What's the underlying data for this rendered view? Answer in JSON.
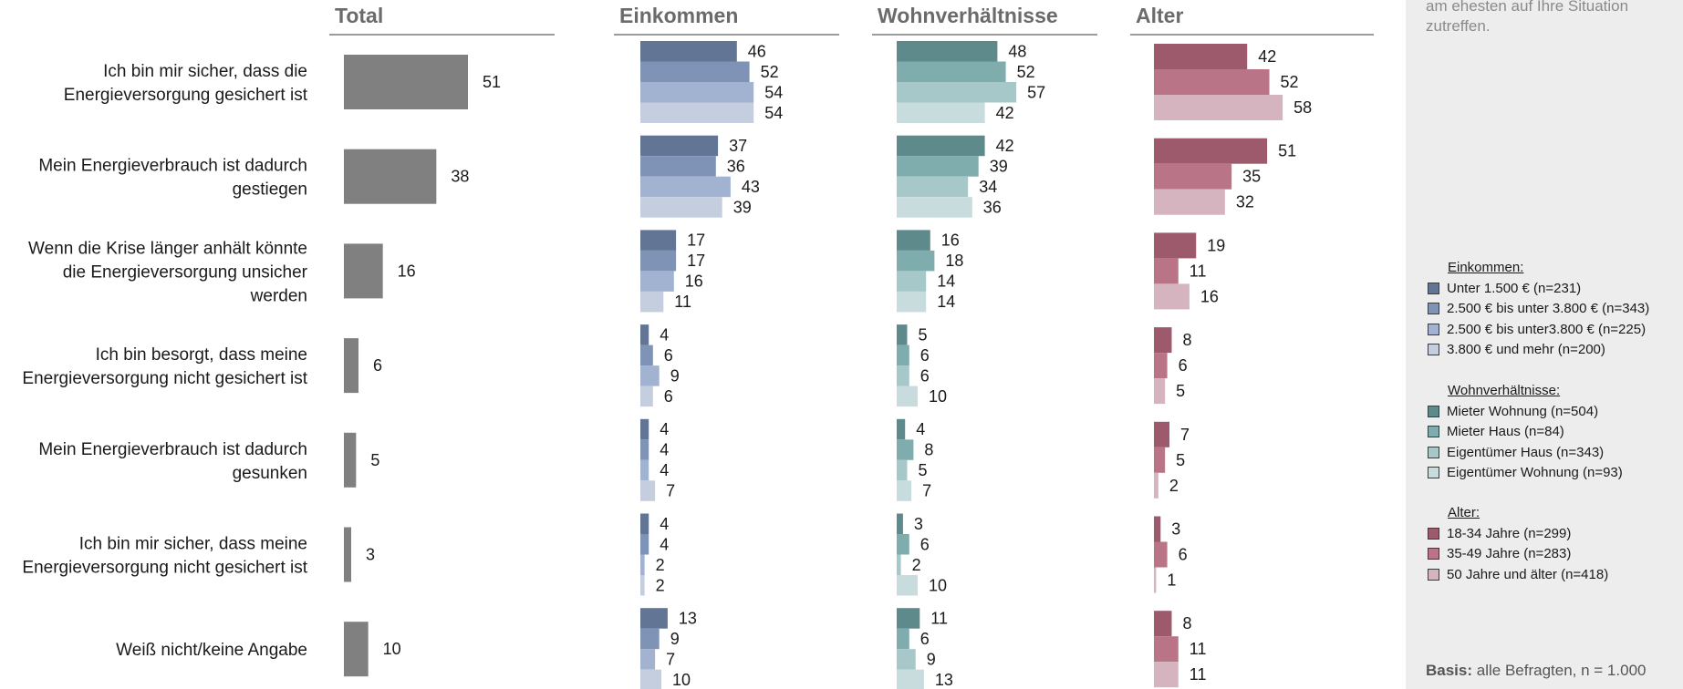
{
  "chart_data": {
    "type": "bar",
    "categories": [
      [
        "Ich bin mir sicher, dass die",
        "Energieversorgung gesichert ist"
      ],
      [
        "Mein Energieverbrauch ist dadurch",
        "gestiegen"
      ],
      [
        "Wenn die Krise länger anhält könnte",
        "die Energieversorgung unsicher",
        "werden"
      ],
      [
        "Ich bin besorgt, dass meine",
        "Energieversorgung nicht gesichert ist"
      ],
      [
        "Mein Energieverbrauch ist dadurch",
        "gesunken"
      ],
      [
        "Ich bin mir sicher, dass meine",
        "Energieversorgung nicht gesichert ist"
      ],
      [
        "Weiß nicht/keine Angabe"
      ]
    ],
    "panels": [
      {
        "title": "Total",
        "series": [
          {
            "name": "Total",
            "color": "#808080",
            "values": [
              51,
              38,
              16,
              6,
              5,
              3,
              10
            ]
          }
        ]
      },
      {
        "title": "Einkommen",
        "series": [
          {
            "name": "Unter 1.500 € (n=231)",
            "color": "#627594",
            "values": [
              46,
              37,
              17,
              4,
              4,
              4,
              13
            ]
          },
          {
            "name": "2.500 € bis unter 3.800 € (n=343)",
            "color": "#7f93b7",
            "values": [
              52,
              36,
              17,
              6,
              4,
              4,
              9
            ]
          },
          {
            "name": "2.500 € bis unter3.800 € (n=225)",
            "color": "#a2b2d1",
            "values": [
              54,
              43,
              16,
              9,
              4,
              2,
              7
            ]
          },
          {
            "name": "3.800 € und mehr (n=200)",
            "color": "#c5cedf",
            "values": [
              54,
              39,
              11,
              6,
              7,
              2,
              10
            ]
          }
        ]
      },
      {
        "title": "Wohnverhältnisse",
        "series": [
          {
            "name": "Mieter Wohnung (n=504)",
            "color": "#5e8a8c",
            "values": [
              48,
              42,
              16,
              5,
              4,
              3,
              11
            ]
          },
          {
            "name": "Mieter Haus (n=84)",
            "color": "#7fadae",
            "values": [
              52,
              39,
              18,
              6,
              8,
              6,
              6
            ]
          },
          {
            "name": "Eigentümer Haus (n=343)",
            "color": "#a6c8c9",
            "values": [
              57,
              34,
              14,
              6,
              5,
              2,
              9
            ]
          },
          {
            "name": "Eigentümer Wohnung (n=93)",
            "color": "#c8dcdd",
            "values": [
              42,
              36,
              14,
              10,
              7,
              10,
              13
            ]
          }
        ]
      },
      {
        "title": "Alter",
        "series": [
          {
            "name": "18-34 Jahre (n=299)",
            "color": "#9c5a6c",
            "values": [
              42,
              51,
              19,
              8,
              7,
              3,
              8
            ]
          },
          {
            "name": "35-49 Jahre (n=283)",
            "color": "#b97488",
            "values": [
              52,
              35,
              11,
              6,
              5,
              6,
              11
            ]
          },
          {
            "name": "50 Jahre und älter (n=418)",
            "color": "#d6b4bf",
            "values": [
              58,
              32,
              16,
              5,
              2,
              1,
              11
            ]
          }
        ]
      }
    ]
  },
  "side": {
    "note_line1": "am ehesten auf Ihre Situation",
    "note_line2": "zutreffen.",
    "legend_groups": [
      {
        "heading": "Einkommen:",
        "items": [
          {
            "label": "Unter 1.500 € (n=231)",
            "color": "#627594"
          },
          {
            "label": "2.500 € bis unter 3.800 € (n=343)",
            "color": "#7f93b7"
          },
          {
            "label": "2.500 € bis unter3.800 € (n=225)",
            "color": "#a2b2d1"
          },
          {
            "label": "3.800 € und mehr (n=200)",
            "color": "#c5cedf"
          }
        ]
      },
      {
        "heading": "Wohnverhältnisse:",
        "items": [
          {
            "label": "Mieter Wohnung (n=504)",
            "color": "#5e8a8c"
          },
          {
            "label": "Mieter Haus (n=84)",
            "color": "#7fadae"
          },
          {
            "label": "Eigentümer Haus (n=343)",
            "color": "#a6c8c9"
          },
          {
            "label": "Eigentümer Wohnung (n=93)",
            "color": "#c8dcdd"
          }
        ]
      },
      {
        "heading": "Alter:",
        "items": [
          {
            "label": "18-34 Jahre (n=299)",
            "color": "#9c5a6c"
          },
          {
            "label": "35-49 Jahre (n=283)",
            "color": "#b97488"
          },
          {
            "label": "50 Jahre und älter (n=418)",
            "color": "#d6b4bf"
          }
        ]
      }
    ],
    "basis_bold": "Basis:",
    "basis_text": " alle Befragten, n = 1.000"
  }
}
